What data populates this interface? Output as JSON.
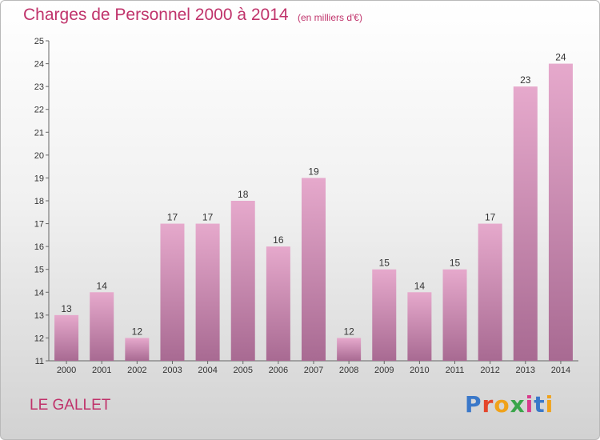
{
  "title": "Charges de Personnel 2000 à 2014",
  "subtitle": "(en milliers d'€)",
  "commune": "LE GALLET",
  "logo": {
    "letters": [
      {
        "ch": "P",
        "color": "#3a78c9"
      },
      {
        "ch": "r",
        "color": "#e4452b"
      },
      {
        "ch": "o",
        "color": "#f0a21a"
      },
      {
        "ch": "x",
        "color": "#3aa54a"
      },
      {
        "ch": "i",
        "color": "#d93a8c"
      },
      {
        "ch": "t",
        "color": "#3a78c9"
      },
      {
        "ch": "i",
        "color": "#f0a21a"
      }
    ]
  },
  "colors": {
    "bar_top": "#e6a9cc",
    "bar_bottom": "#a86a92",
    "accent": "#c0336b"
  },
  "chart_data": {
    "type": "bar",
    "categories": [
      "2000",
      "2001",
      "2002",
      "2003",
      "2004",
      "2005",
      "2006",
      "2007",
      "2008",
      "2009",
      "2010",
      "2011",
      "2012",
      "2013",
      "2014"
    ],
    "values": [
      13,
      14,
      12,
      17,
      17,
      18,
      16,
      19,
      12,
      15,
      14,
      15,
      17,
      23,
      24
    ],
    "ylim": [
      11,
      25
    ],
    "yticks": [
      11,
      12,
      13,
      14,
      15,
      16,
      17,
      18,
      19,
      20,
      21,
      22,
      23,
      24,
      25
    ],
    "grid": false,
    "legend": "none"
  }
}
